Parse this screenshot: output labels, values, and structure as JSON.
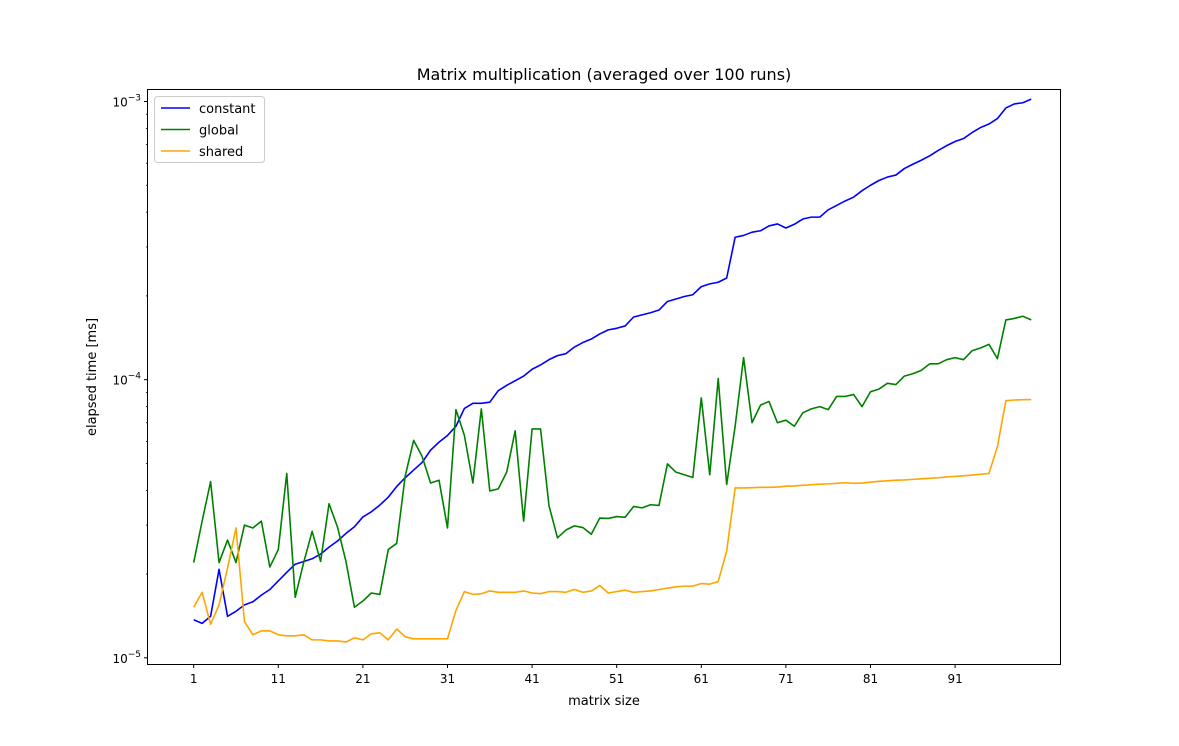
{
  "chart_data": {
    "type": "line",
    "title": "Matrix multiplication (averaged over 100 runs)",
    "xlabel": "matrix size",
    "ylabel": "elapsed time [ms]",
    "yscale": "log",
    "xlim": [
      -4.4,
      103.4
    ],
    "ylim": [
      9.5e-06,
      0.0011
    ],
    "x_ticks": [
      1,
      11,
      21,
      31,
      41,
      51,
      61,
      71,
      81,
      91
    ],
    "y_ticks": [
      {
        "value": 1e-05,
        "label": "10",
        "exp": "−5"
      },
      {
        "value": 0.0001,
        "label": "10",
        "exp": "−4"
      },
      {
        "value": 0.001,
        "label": "10",
        "exp": "−3"
      }
    ],
    "grid": false,
    "legend_position": "top-left",
    "x_start": 1,
    "series": [
      {
        "name": "constant",
        "color": "#0000ff",
        "values": [
          1.37e-05,
          1.33e-05,
          1.41e-05,
          2.08e-05,
          1.41e-05,
          1.47e-05,
          1.55e-05,
          1.59e-05,
          1.68e-05,
          1.76e-05,
          1.89e-05,
          2.03e-05,
          2.17e-05,
          2.22e-05,
          2.27e-05,
          2.36e-05,
          2.5e-05,
          2.63e-05,
          2.8e-05,
          2.96e-05,
          3.21e-05,
          3.35e-05,
          3.54e-05,
          3.78e-05,
          4.13e-05,
          4.44e-05,
          4.73e-05,
          5.04e-05,
          5.58e-05,
          5.96e-05,
          6.3e-05,
          6.8e-05,
          7.88e-05,
          8.22e-05,
          8.22e-05,
          8.3e-05,
          9.13e-05,
          9.54e-05,
          9.91e-05,
          0.000103,
          0.000109,
          0.000113,
          0.000118,
          0.000122,
          0.000124,
          0.000131,
          0.000136,
          0.00014,
          0.000146,
          0.000151,
          0.000153,
          0.000156,
          0.000168,
          0.000171,
          0.000174,
          0.000178,
          0.000191,
          0.000195,
          0.000199,
          0.000202,
          0.000216,
          0.000221,
          0.000224,
          0.000232,
          0.000325,
          0.00033,
          0.000339,
          0.000343,
          0.000357,
          0.000363,
          0.000351,
          0.000362,
          0.000378,
          0.000384,
          0.000384,
          0.000408,
          0.000423,
          0.000439,
          0.000453,
          0.000478,
          0.0005,
          0.00052,
          0.000535,
          0.000544,
          0.000574,
          0.000595,
          0.000615,
          0.000638,
          0.000667,
          0.000694,
          0.000718,
          0.000736,
          0.000773,
          0.000806,
          0.00083,
          0.000868,
          0.000948,
          0.00098,
          0.00099,
          0.00102
        ]
      },
      {
        "name": "global",
        "color": "#008000",
        "values": [
          2.2e-05,
          3.1e-05,
          4.3e-05,
          2.2e-05,
          2.65e-05,
          2.2e-05,
          3e-05,
          2.93e-05,
          3.1e-05,
          2.12e-05,
          2.45e-05,
          4.6e-05,
          1.65e-05,
          2.2e-05,
          2.85e-05,
          2.22e-05,
          3.58e-05,
          2.95e-05,
          2.22e-05,
          1.52e-05,
          1.6e-05,
          1.71e-05,
          1.69e-05,
          2.45e-05,
          2.58e-05,
          4.5e-05,
          6.05e-05,
          5.3e-05,
          4.25e-05,
          4.35e-05,
          2.93e-05,
          7.8e-05,
          6.3e-05,
          4.25e-05,
          7.85e-05,
          3.98e-05,
          4.05e-05,
          4.65e-05,
          6.55e-05,
          3.1e-05,
          6.65e-05,
          6.65e-05,
          3.52e-05,
          2.7e-05,
          2.88e-05,
          2.98e-05,
          2.94e-05,
          2.78e-05,
          3.18e-05,
          3.17e-05,
          3.22e-05,
          3.2e-05,
          3.5e-05,
          3.46e-05,
          3.55e-05,
          3.53e-05,
          4.98e-05,
          4.65e-05,
          4.55e-05,
          4.45e-05,
          8.6e-05,
          4.55e-05,
          0.000101,
          4.2e-05,
          6.8e-05,
          0.00012,
          7e-05,
          8.1e-05,
          8.35e-05,
          7e-05,
          7.15e-05,
          6.8e-05,
          7.6e-05,
          7.85e-05,
          8e-05,
          7.8e-05,
          8.7e-05,
          8.7e-05,
          8.85e-05,
          8e-05,
          9.05e-05,
          9.25e-05,
          9.7e-05,
          9.6e-05,
          0.000103,
          0.000105,
          0.000108,
          0.000114,
          0.000114,
          0.000118,
          0.00012,
          0.000118,
          0.000127,
          0.00013,
          0.000134,
          0.000119,
          0.000164,
          0.000166,
          0.000169,
          0.000164
        ]
      },
      {
        "name": "shared",
        "color": "#ffa500",
        "values": [
          1.52e-05,
          1.72e-05,
          1.32e-05,
          1.55e-05,
          2.1e-05,
          2.93e-05,
          1.35e-05,
          1.21e-05,
          1.25e-05,
          1.25e-05,
          1.21e-05,
          1.2e-05,
          1.2e-05,
          1.21e-05,
          1.16e-05,
          1.16e-05,
          1.15e-05,
          1.15e-05,
          1.14e-05,
          1.18e-05,
          1.16e-05,
          1.22e-05,
          1.23e-05,
          1.16e-05,
          1.27e-05,
          1.19e-05,
          1.17e-05,
          1.17e-05,
          1.17e-05,
          1.17e-05,
          1.17e-05,
          1.48e-05,
          1.73e-05,
          1.69e-05,
          1.7e-05,
          1.74e-05,
          1.72e-05,
          1.72e-05,
          1.72e-05,
          1.74e-05,
          1.71e-05,
          1.7e-05,
          1.73e-05,
          1.73e-05,
          1.72e-05,
          1.76e-05,
          1.72e-05,
          1.74e-05,
          1.82e-05,
          1.71e-05,
          1.73e-05,
          1.75e-05,
          1.72e-05,
          1.73e-05,
          1.74e-05,
          1.76e-05,
          1.78e-05,
          1.8e-05,
          1.81e-05,
          1.81e-05,
          1.85e-05,
          1.84e-05,
          1.88e-05,
          2.42e-05,
          4.08e-05,
          4.08e-05,
          4.09e-05,
          4.1e-05,
          4.1e-05,
          4.11e-05,
          4.14e-05,
          4.15e-05,
          4.17e-05,
          4.19e-05,
          4.21e-05,
          4.22e-05,
          4.24e-05,
          4.26e-05,
          4.24e-05,
          4.25e-05,
          4.28e-05,
          4.31e-05,
          4.33e-05,
          4.35e-05,
          4.36e-05,
          4.38e-05,
          4.4e-05,
          4.42e-05,
          4.44e-05,
          4.47e-05,
          4.49e-05,
          4.51e-05,
          4.54e-05,
          4.57e-05,
          4.6e-05,
          5.74e-05,
          8.4e-05,
          8.45e-05,
          8.47e-05,
          8.48e-05
        ]
      }
    ]
  }
}
